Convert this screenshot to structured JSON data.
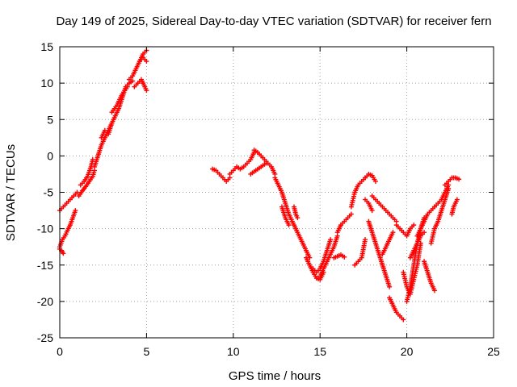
{
  "chart_data": {
    "type": "scatter",
    "title": "Day 149 of 2025, Sidereal Day-to-day VTEC variation (SDTVAR) for receiver fern",
    "xlabel": "GPS time / hours",
    "ylabel": "SDTVAR / TECUs",
    "xlim": [
      0,
      25
    ],
    "ylim": [
      -25,
      15
    ],
    "xticks": [
      "0",
      "5",
      "10",
      "15",
      "20",
      "25"
    ],
    "yticks": [
      "15",
      "10",
      "5",
      "0",
      "-5",
      "-10",
      "-15",
      "-20",
      "-25"
    ],
    "xtick_values": [
      0,
      5,
      10,
      15,
      20,
      25
    ],
    "ytick_values": [
      15,
      10,
      5,
      0,
      -5,
      -10,
      -15,
      -20,
      -25
    ],
    "grid": true,
    "marker": "+",
    "color": "#ff0000",
    "series": [
      {
        "x": [
          0.0,
          0.2,
          0.4,
          0.6,
          0.8,
          1.0
        ],
        "y": [
          -7.5,
          -7.0,
          -6.5,
          -6.0,
          -5.5,
          -5.0
        ]
      },
      {
        "x": [
          0.0,
          0.15,
          0.3,
          0.45,
          0.6,
          0.75,
          0.9
        ],
        "y": [
          -12.5,
          -11.5,
          -11.0,
          -10.2,
          -9.5,
          -8.5,
          -7.5
        ]
      },
      {
        "x": [
          0.0,
          0.1,
          0.2
        ],
        "y": [
          -12.8,
          -13.0,
          -13.4
        ]
      },
      {
        "x": [
          1.1,
          1.3,
          1.5,
          1.7,
          1.9,
          2.0
        ],
        "y": [
          -5.5,
          -4.8,
          -4.2,
          -3.5,
          -2.8,
          -2.0
        ]
      },
      {
        "x": [
          1.2,
          1.4,
          1.6,
          1.8,
          1.9
        ],
        "y": [
          -4.0,
          -3.5,
          -2.8,
          -1.5,
          -0.5
        ]
      },
      {
        "x": [
          2.0,
          2.2,
          2.4,
          2.6,
          2.8,
          3.0
        ],
        "y": [
          -1.5,
          0.0,
          1.5,
          2.5,
          3.5,
          4.5
        ]
      },
      {
        "x": [
          2.4,
          2.5,
          2.6
        ],
        "y": [
          2.5,
          3.0,
          3.5
        ]
      },
      {
        "x": [
          2.8,
          3.0,
          3.2,
          3.4,
          3.6,
          3.8,
          4.0,
          4.2
        ],
        "y": [
          3.0,
          4.5,
          5.5,
          6.5,
          8.0,
          9.5,
          10.0,
          10.3
        ]
      },
      {
        "x": [
          3.0,
          3.3,
          3.6,
          3.9
        ],
        "y": [
          6.0,
          7.0,
          8.5,
          9.5
        ]
      },
      {
        "x": [
          4.0,
          4.2,
          4.4,
          4.6,
          4.8,
          5.0
        ],
        "y": [
          10.5,
          11.0,
          12.0,
          13.0,
          14.0,
          14.5
        ]
      },
      {
        "x": [
          4.3,
          4.5,
          4.7,
          4.9,
          5.0
        ],
        "y": [
          9.5,
          10.0,
          10.5,
          9.5,
          9.0
        ]
      },
      {
        "x": [
          4.6,
          4.8,
          5.0
        ],
        "y": [
          13.0,
          13.5,
          13.0
        ]
      },
      {
        "x": [
          8.8,
          9.0,
          9.2,
          9.4,
          9.6,
          9.8
        ],
        "y": [
          -1.8,
          -2.0,
          -2.5,
          -3.0,
          -3.5,
          -3.0
        ]
      },
      {
        "x": [
          9.8,
          10.0,
          10.2,
          10.4,
          10.6,
          10.8,
          11.0,
          11.2
        ],
        "y": [
          -2.5,
          -2.0,
          -1.5,
          -1.8,
          -1.5,
          -1.0,
          -0.5,
          0.5
        ]
      },
      {
        "x": [
          11.2,
          11.4,
          11.6,
          11.8,
          12.0,
          12.2,
          12.4
        ],
        "y": [
          0.8,
          0.5,
          0.0,
          -0.5,
          -1.0,
          -1.5,
          -2.5
        ]
      },
      {
        "x": [
          11.0,
          11.3,
          11.6,
          11.9
        ],
        "y": [
          -2.5,
          -2.0,
          -1.5,
          -1.0
        ]
      },
      {
        "x": [
          12.4,
          12.6,
          12.8,
          13.0,
          13.2,
          13.4,
          13.6,
          13.8,
          14.0,
          14.2,
          14.4
        ],
        "y": [
          -3.0,
          -4.0,
          -5.0,
          -6.5,
          -8.0,
          -9.0,
          -10.0,
          -11.0,
          -12.0,
          -13.0,
          -14.0
        ]
      },
      {
        "x": [
          12.8,
          13.0,
          13.2
        ],
        "y": [
          -7.0,
          -8.5,
          -9.5
        ]
      },
      {
        "x": [
          13.5,
          13.6,
          13.7
        ],
        "y": [
          -7.0,
          -8.0,
          -8.5
        ]
      },
      {
        "x": [
          14.2,
          14.4,
          14.6,
          14.8,
          15.0,
          15.2
        ],
        "y": [
          -14.0,
          -15.0,
          -16.0,
          -16.8,
          -17.0,
          -16.0
        ]
      },
      {
        "x": [
          14.6,
          14.8,
          15.0,
          15.2,
          15.4,
          15.6
        ],
        "y": [
          -15.5,
          -16.0,
          -15.5,
          -14.5,
          -13.0,
          -11.5
        ]
      },
      {
        "x": [
          15.0,
          15.2,
          15.4,
          15.6,
          15.8,
          16.0
        ],
        "y": [
          -16.5,
          -15.5,
          -14.5,
          -13.5,
          -12.5,
          -11.0
        ]
      },
      {
        "x": [
          15.8,
          16.0,
          16.2,
          16.4
        ],
        "y": [
          -14.0,
          -13.8,
          -13.6,
          -13.9
        ]
      },
      {
        "x": [
          16.0,
          16.2,
          16.4,
          16.6,
          16.8
        ],
        "y": [
          -10.5,
          -9.5,
          -9.0,
          -8.5,
          -8.0
        ]
      },
      {
        "x": [
          16.8,
          17.0,
          17.2,
          17.4,
          17.6
        ],
        "y": [
          -7.0,
          -5.0,
          -4.0,
          -3.5,
          -3.0
        ]
      },
      {
        "x": [
          17.6,
          17.8,
          18.0,
          18.2
        ],
        "y": [
          -3.0,
          -2.5,
          -2.7,
          -3.5
        ]
      },
      {
        "x": [
          17.0,
          17.2,
          17.4,
          17.6
        ],
        "y": [
          -15.0,
          -14.5,
          -14.0,
          -11.5
        ]
      },
      {
        "x": [
          17.8,
          18.0,
          18.2,
          18.4,
          18.6,
          18.8,
          19.0
        ],
        "y": [
          -9.0,
          -10.5,
          -12.0,
          -13.5,
          -15.0,
          -16.5,
          -18.0
        ]
      },
      {
        "x": [
          17.6,
          17.8,
          18.0
        ],
        "y": [
          -6.0,
          -6.5,
          -7.5
        ]
      },
      {
        "x": [
          18.0,
          18.2,
          18.4,
          18.6,
          18.8,
          19.0,
          19.2,
          19.4
        ],
        "y": [
          -5.5,
          -6.0,
          -6.5,
          -7.0,
          -7.5,
          -8.0,
          -8.5,
          -9.0
        ]
      },
      {
        "x": [
          18.6,
          18.8,
          19.0,
          19.2
        ],
        "y": [
          -13.5,
          -12.5,
          -11.5,
          -10.5
        ]
      },
      {
        "x": [
          19.0,
          19.2,
          19.4,
          19.6,
          19.8
        ],
        "y": [
          -19.5,
          -20.5,
          -21.5,
          -22.0,
          -22.5
        ]
      },
      {
        "x": [
          19.4,
          19.6,
          19.8,
          20.0,
          20.2,
          20.4
        ],
        "y": [
          -9.5,
          -10.0,
          -10.5,
          -11.0,
          -10.0,
          -9.5
        ]
      },
      {
        "x": [
          19.8,
          20.0,
          20.2,
          20.4,
          20.6,
          20.8
        ],
        "y": [
          -16.0,
          -18.0,
          -19.0,
          -17.0,
          -15.0,
          -12.0
        ]
      },
      {
        "x": [
          20.0,
          20.2,
          20.4,
          20.6,
          20.8,
          21.0
        ],
        "y": [
          -20.0,
          -18.0,
          -15.0,
          -12.0,
          -10.0,
          -8.5
        ]
      },
      {
        "x": [
          20.2,
          20.4,
          20.6,
          20.8,
          21.0
        ],
        "y": [
          -14.0,
          -13.0,
          -12.0,
          -11.0,
          -10.5
        ]
      },
      {
        "x": [
          20.6,
          20.8,
          21.0,
          21.2,
          21.4,
          21.6
        ],
        "y": [
          -11.0,
          -10.0,
          -9.0,
          -8.0,
          -7.5,
          -7.0
        ]
      },
      {
        "x": [
          21.0,
          21.2,
          21.4,
          21.6
        ],
        "y": [
          -14.5,
          -16.0,
          -17.5,
          -18.5
        ]
      },
      {
        "x": [
          21.4,
          21.6,
          21.8,
          22.0,
          22.2,
          22.4
        ],
        "y": [
          -12.0,
          -10.0,
          -9.0,
          -7.5,
          -6.0,
          -4.5
        ]
      },
      {
        "x": [
          21.6,
          21.8,
          22.0,
          22.2,
          22.4
        ],
        "y": [
          -7.0,
          -6.5,
          -6.0,
          -5.0,
          -4.0
        ]
      },
      {
        "x": [
          22.2,
          22.4,
          22.6,
          22.8,
          23.0
        ],
        "y": [
          -4.0,
          -3.5,
          -3.0,
          -3.0,
          -3.2
        ]
      },
      {
        "x": [
          22.6,
          22.7,
          22.8,
          22.9
        ],
        "y": [
          -8.0,
          -7.0,
          -6.5,
          -6.0
        ]
      }
    ]
  }
}
